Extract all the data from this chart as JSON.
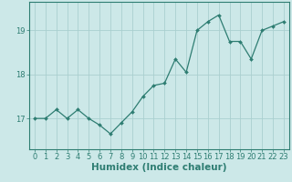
{
  "x": [
    0,
    1,
    2,
    3,
    4,
    5,
    6,
    7,
    8,
    9,
    10,
    11,
    12,
    13,
    14,
    15,
    16,
    17,
    18,
    19,
    20,
    21,
    22,
    23
  ],
  "y": [
    17.0,
    17.0,
    17.2,
    17.0,
    17.2,
    17.0,
    16.85,
    16.65,
    16.9,
    17.15,
    17.5,
    17.75,
    17.8,
    18.35,
    18.05,
    19.0,
    19.2,
    19.35,
    18.75,
    18.75,
    18.35,
    19.0,
    19.1,
    19.2
  ],
  "xlabel": "Humidex (Indice chaleur)",
  "bg_color": "#cce8e8",
  "line_color": "#2e7d72",
  "marker_color": "#2e7d72",
  "grid_color": "#aacfcf",
  "yticks": [
    17,
    18,
    19
  ],
  "ylim": [
    16.3,
    19.65
  ],
  "xlim": [
    -0.5,
    23.5
  ],
  "tick_label_color": "#2e7d72",
  "xlabel_color": "#2e7d72",
  "tick_fontsize": 6.0,
  "xlabel_fontsize": 7.5
}
